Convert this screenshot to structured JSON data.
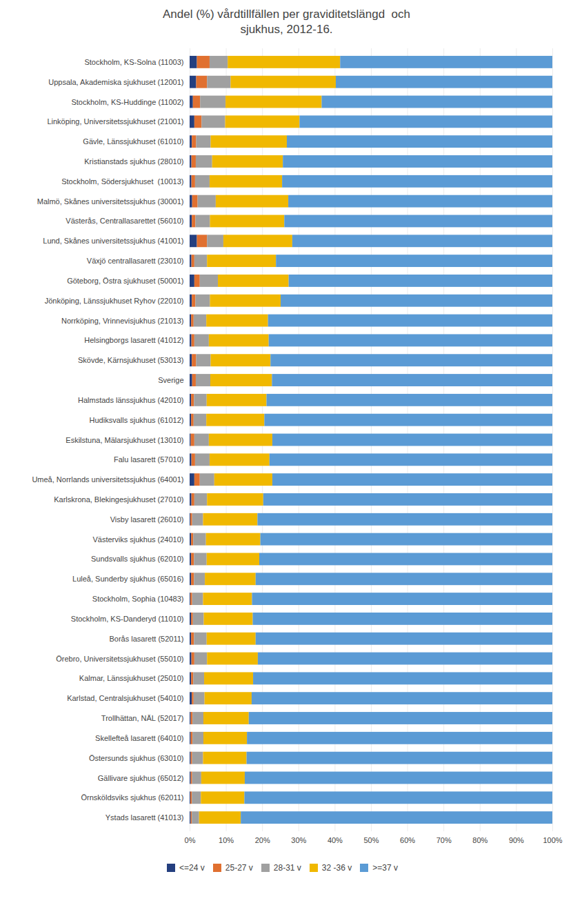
{
  "chart_data": {
    "type": "bar",
    "orientation": "horizontal",
    "stacked": true,
    "title": "Andel (%) vårdtillfällen per graviditetslängd  och\nsjukhus, 2012-16.",
    "categories": [
      "Stockholm, KS-Solna (11003)",
      "Uppsala, Akademiska sjukhuset (12001)",
      "Stockholm, KS-Huddinge (11002)",
      "Linköping, Universitetssjukhuset (21001)",
      "Gävle, Länssjukhuset (61010)",
      "Kristianstads sjukhus (28010)",
      "Stockholm, Södersjukhuset  (10013)",
      "Malmö, Skånes universitetssjukhus (30001)",
      "Västerås, Centrallasarettet (56010)",
      "Lund, Skånes universitetssjukhus (41001)",
      "Växjö centrallasarett (23010)",
      "Göteborg, Östra sjukhuset (50001)",
      "Jönköping, Länssjukhuset Ryhov (22010)",
      "Norrköping, Vrinnevisjukhus (21013)",
      "Helsingborgs lasarett (41012)",
      "Skövde, Kärnsjukhuset (53013)",
      "Sverige",
      "Halmstads länssjukhus (42010)",
      "Hudiksvalls sjukhus (61012)",
      "Eskilstuna, Mälarsjukhuset (13010)",
      "Falu lasarett (57010)",
      "Umeå, Norrlands universitetssjukhus (64001)",
      "Karlskrona, Blekingesjukhuset (27010)",
      "Visby lasarett (26010)",
      "Västerviks sjukhus (24010)",
      "Sundsvalls sjukhus (62010)",
      "Luleå, Sunderby sjukhus (65016)",
      "Stockholm, Sophia (10483)",
      "Stockholm, KS-Danderyd (11010)",
      "Borås lasarett (52011)",
      "Örebro, Universitetssjukhuset (55010)",
      "Kalmar, Länssjukhuset (25010)",
      "Karlstad, Centralsjukhuset (54010)",
      "Trollhättan, NÄL (52017)",
      "Skellefteå lasarett (64010)",
      "Östersunds sjukhus (63010)",
      "Gällivare sjukhus (65012)",
      "Örnsköldsviks sjukhus (62011)",
      "Ystads lasarett (41013)"
    ],
    "series": [
      {
        "name": "<=24 v",
        "color": "#243f7f",
        "values": [
          2.0,
          1.8,
          0.9,
          1.3,
          0.6,
          0.5,
          0.5,
          0.7,
          0.6,
          2.0,
          0.5,
          1.3,
          0.6,
          0.4,
          0.5,
          0.6,
          0.7,
          0.4,
          0.4,
          0.3,
          0.5,
          1.3,
          0.5,
          0.2,
          0.4,
          0.4,
          0.4,
          0.2,
          0.4,
          0.4,
          0.5,
          0.4,
          0.6,
          0.3,
          0.3,
          0.3,
          0.3,
          0.2,
          0.3
        ]
      },
      {
        "name": "25-27 v",
        "color": "#e07030",
        "values": [
          3.5,
          3.0,
          2.0,
          2.0,
          1.2,
          1.2,
          1.0,
          1.5,
          1.0,
          2.8,
          0.8,
          1.5,
          1.0,
          0.7,
          0.8,
          1.2,
          1.0,
          0.8,
          0.7,
          1.0,
          1.0,
          1.5,
          0.8,
          0.5,
          0.6,
          0.8,
          0.8,
          0.5,
          0.5,
          0.8,
          0.8,
          0.6,
          0.5,
          0.5,
          0.5,
          0.4,
          0.4,
          0.4,
          0.3
        ]
      },
      {
        "name": "28-31 v",
        "color": "#a0a0a0",
        "values": [
          5.0,
          6.5,
          7.0,
          6.5,
          4.0,
          4.5,
          4.0,
          5.0,
          4.0,
          4.5,
          3.5,
          5.0,
          4.0,
          3.5,
          4.0,
          4.0,
          4.0,
          3.5,
          3.5,
          4.0,
          4.0,
          4.0,
          3.5,
          3.0,
          3.5,
          3.5,
          3.0,
          3.0,
          3.0,
          3.5,
          3.5,
          3.0,
          3.0,
          3.0,
          3.0,
          3.0,
          2.5,
          2.5,
          2.0
        ]
      },
      {
        "name": "32 -36 v",
        "color": "#f0b800",
        "values": [
          31.0,
          29.0,
          26.5,
          20.5,
          21.0,
          19.5,
          20.0,
          20.0,
          20.5,
          19.0,
          19.0,
          19.5,
          19.5,
          17.0,
          16.5,
          16.5,
          17.0,
          16.5,
          16.0,
          17.5,
          16.5,
          16.0,
          15.5,
          15.0,
          15.0,
          14.5,
          14.0,
          13.5,
          13.5,
          13.5,
          14.0,
          13.5,
          13.0,
          12.5,
          12.0,
          12.0,
          12.0,
          12.0,
          11.5
        ]
      },
      {
        "name": ">=37 v",
        "color": "#5b9bd5",
        "values": [
          58.5,
          59.7,
          63.6,
          69.7,
          73.2,
          74.3,
          74.5,
          72.8,
          73.9,
          71.7,
          76.2,
          72.7,
          74.9,
          78.4,
          78.2,
          77.7,
          77.3,
          78.8,
          79.4,
          77.2,
          78.0,
          77.2,
          79.7,
          81.3,
          80.5,
          80.8,
          81.8,
          82.8,
          82.6,
          81.8,
          81.2,
          82.5,
          82.9,
          83.7,
          84.2,
          84.3,
          84.8,
          84.9,
          85.9
        ]
      }
    ],
    "xlim": [
      0,
      100
    ],
    "xticks": [
      {
        "value": 0,
        "label": "0%"
      },
      {
        "value": 10,
        "label": "10%"
      },
      {
        "value": 20,
        "label": "20%"
      },
      {
        "value": 30,
        "label": "30%"
      },
      {
        "value": 40,
        "label": "40%"
      },
      {
        "value": 50,
        "label": "50%"
      },
      {
        "value": 60,
        "label": "60%"
      },
      {
        "value": 70,
        "label": "70%"
      },
      {
        "value": 80,
        "label": "80%"
      },
      {
        "value": 90,
        "label": "90%"
      },
      {
        "value": 100,
        "label": "100%"
      }
    ],
    "grid": true,
    "legend": "bottom"
  }
}
